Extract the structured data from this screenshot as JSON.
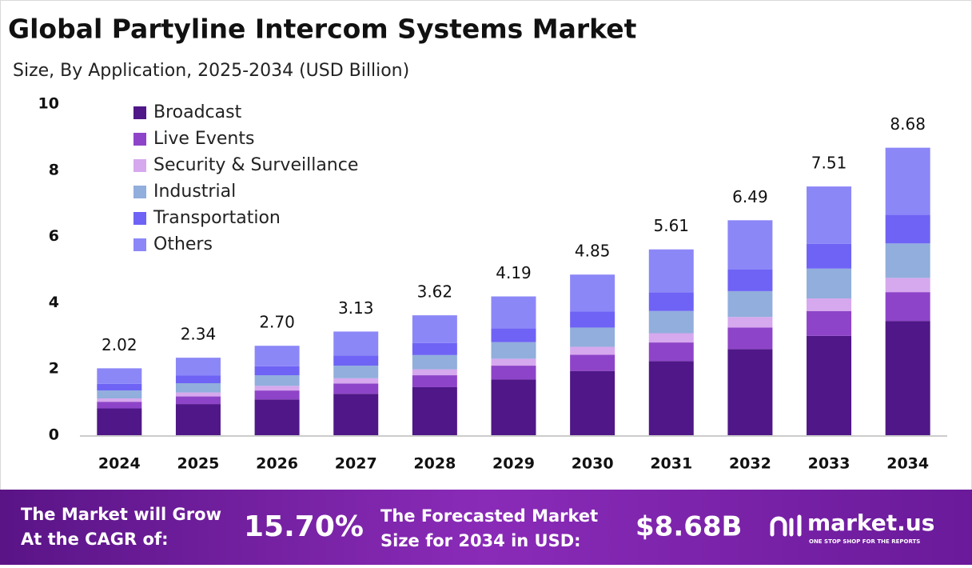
{
  "chart_data": {
    "type": "stacked-bar",
    "title": "Global Partyline Intercom Systems Market",
    "subtitle": "Size, By Application, 2025-2034 (USD Billion)",
    "categories": [
      "2024",
      "2025",
      "2026",
      "2027",
      "2028",
      "2029",
      "2030",
      "2031",
      "2032",
      "2033",
      "2034"
    ],
    "series": [
      {
        "name": "Broadcast",
        "color": "#4f1787",
        "values": [
          0.81,
          0.94,
          1.08,
          1.25,
          1.45,
          1.68,
          1.94,
          2.24,
          2.6,
          3.0,
          3.45
        ]
      },
      {
        "name": "Live Events",
        "color": "#8e44c8",
        "values": [
          0.2,
          0.23,
          0.27,
          0.31,
          0.36,
          0.42,
          0.49,
          0.56,
          0.65,
          0.75,
          0.87
        ]
      },
      {
        "name": "Security & Surveillance",
        "color": "#d6a8ee",
        "values": [
          0.1,
          0.12,
          0.14,
          0.16,
          0.18,
          0.21,
          0.24,
          0.28,
          0.32,
          0.38,
          0.43
        ]
      },
      {
        "name": "Industrial",
        "color": "#91aedc",
        "values": [
          0.24,
          0.28,
          0.32,
          0.38,
          0.43,
          0.5,
          0.58,
          0.67,
          0.78,
          0.9,
          1.04
        ]
      },
      {
        "name": "Transportation",
        "color": "#6e63f5",
        "values": [
          0.2,
          0.23,
          0.27,
          0.31,
          0.36,
          0.42,
          0.49,
          0.56,
          0.65,
          0.75,
          0.87
        ]
      },
      {
        "name": "Others",
        "color": "#8c87f7",
        "values": [
          0.47,
          0.54,
          0.62,
          0.72,
          0.84,
          0.96,
          1.11,
          1.3,
          1.49,
          1.73,
          2.02
        ]
      }
    ],
    "totals": [
      2.02,
      2.34,
      2.7,
      3.13,
      3.62,
      4.19,
      4.85,
      5.61,
      6.49,
      7.51,
      8.68
    ],
    "total_labels": [
      "2.02",
      "2.34",
      "2.70",
      "3.13",
      "3.62",
      "4.19",
      "4.85",
      "5.61",
      "6.49",
      "7.51",
      "8.68"
    ],
    "ylim": [
      0,
      10
    ],
    "yticks": [
      0,
      2,
      4,
      6,
      8,
      10
    ],
    "grid": false,
    "legend": "top-left"
  },
  "footer": {
    "cagr_text": [
      "The Market will Grow",
      "At the CAGR of:"
    ],
    "cagr_value": "15.70%",
    "forecast_text": [
      "The Forecasted Market",
      "Size for 2034 in USD:"
    ],
    "forecast_value": "$8.68B",
    "brand": "market.us",
    "tagline": "ONE STOP SHOP FOR THE REPORTS"
  }
}
